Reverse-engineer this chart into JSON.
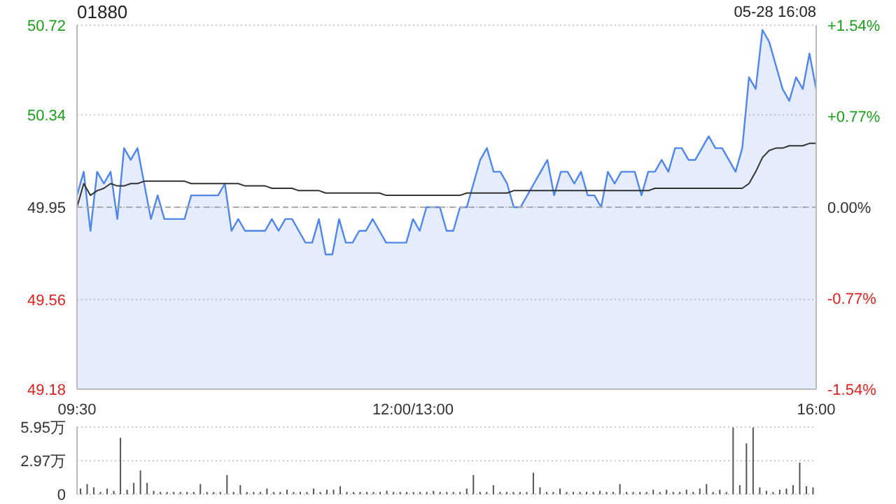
{
  "chart_data": [
    {
      "type": "area",
      "title": "01880",
      "annotations": [
        "05-28 16:08"
      ],
      "categories": [
        "09:30",
        null,
        null,
        null,
        null,
        null,
        null,
        null,
        null,
        null,
        null,
        null,
        null,
        null,
        null,
        null,
        null,
        null,
        null,
        null,
        null,
        null,
        null,
        null,
        null,
        null,
        null,
        null,
        null,
        null,
        null,
        null,
        null,
        null,
        null,
        null,
        null,
        null,
        null,
        null,
        null,
        null,
        null,
        null,
        null,
        null,
        null,
        null,
        null,
        null,
        "12:00/13:00",
        null,
        null,
        null,
        null,
        null,
        null,
        null,
        null,
        null,
        null,
        null,
        null,
        null,
        null,
        null,
        null,
        null,
        null,
        null,
        null,
        null,
        null,
        null,
        null,
        null,
        null,
        null,
        null,
        null,
        null,
        null,
        null,
        null,
        null,
        null,
        null,
        null,
        null,
        null,
        null,
        null,
        null,
        null,
        null,
        null,
        null,
        null,
        null,
        null,
        null,
        null,
        null,
        null,
        null,
        null,
        null,
        null,
        null,
        null,
        "16:00"
      ],
      "ylim": [
        49.18,
        50.72
      ],
      "yticks": [
        49.18,
        49.56,
        49.95,
        50.34,
        50.72
      ],
      "y2lim": [
        -1.54,
        1.54
      ],
      "y2ticks": [
        {
          "value": -1.54,
          "label": "-1.54%"
        },
        {
          "value": -0.77,
          "label": "-0.77%"
        },
        {
          "value": 0,
          "label": "0.00%"
        },
        {
          "value": 0.77,
          "label": "+0.77%"
        },
        {
          "value": 1.54,
          "label": "+1.54%"
        }
      ],
      "grid": "y",
      "ref_lines": [
        {
          "axis": "y",
          "value": 49.95,
          "color": "#aaaaaa",
          "line_style": "dashed"
        }
      ],
      "series": [
        {
          "color": "#4f86ec",
          "values": [
            50.0,
            50.1,
            49.85,
            50.1,
            50.05,
            50.1,
            49.9,
            50.2,
            50.15,
            50.2,
            50.05,
            49.9,
            50.0,
            49.9,
            49.9,
            49.9,
            49.9,
            50.0,
            50.0,
            50.0,
            50.0,
            50.0,
            50.05,
            49.85,
            49.9,
            49.85,
            49.85,
            49.85,
            49.85,
            49.9,
            49.85,
            49.9,
            49.9,
            49.85,
            49.8,
            49.8,
            49.9,
            49.75,
            49.75,
            49.9,
            49.8,
            49.8,
            49.85,
            49.85,
            49.9,
            49.85,
            49.8,
            49.8,
            49.8,
            49.8,
            49.9,
            49.85,
            49.95,
            49.95,
            49.95,
            49.85,
            49.85,
            49.95,
            49.95,
            50.05,
            50.15,
            50.2,
            50.1,
            50.1,
            50.05,
            49.95,
            49.95,
            50.0,
            50.05,
            50.1,
            50.15,
            50.0,
            50.1,
            50.1,
            50.05,
            50.1,
            50.0,
            50.0,
            49.95,
            50.1,
            50.05,
            50.1,
            50.1,
            50.1,
            50.0,
            50.1,
            50.1,
            50.15,
            50.1,
            50.2,
            50.2,
            50.15,
            50.15,
            50.2,
            50.25,
            50.2,
            50.2,
            50.15,
            50.1,
            50.2,
            50.5,
            50.45,
            50.7,
            50.65,
            50.55,
            50.45,
            50.4,
            50.5,
            50.45,
            50.6,
            50.45
          ]
        },
        {
          "type": "line",
          "color": "#333333",
          "values": [
            49.95,
            50.05,
            50.0,
            50.02,
            50.03,
            50.05,
            50.04,
            50.04,
            50.05,
            50.05,
            50.06,
            50.06,
            50.06,
            50.06,
            50.06,
            50.06,
            50.06,
            50.05,
            50.05,
            50.05,
            50.05,
            50.05,
            50.05,
            50.05,
            50.05,
            50.04,
            50.04,
            50.04,
            50.04,
            50.03,
            50.03,
            50.03,
            50.03,
            50.02,
            50.02,
            50.02,
            50.02,
            50.01,
            50.01,
            50.01,
            50.01,
            50.01,
            50.01,
            50.01,
            50.01,
            50.01,
            50.0,
            50.0,
            50.0,
            50.0,
            50.0,
            50.0,
            50.0,
            50.0,
            50.0,
            50.0,
            50.0,
            50.0,
            50.01,
            50.01,
            50.01,
            50.01,
            50.01,
            50.01,
            50.01,
            50.02,
            50.02,
            50.02,
            50.02,
            50.02,
            50.02,
            50.02,
            50.02,
            50.02,
            50.02,
            50.02,
            50.02,
            50.02,
            50.02,
            50.02,
            50.02,
            50.02,
            50.02,
            50.02,
            50.02,
            50.02,
            50.03,
            50.03,
            50.03,
            50.03,
            50.03,
            50.03,
            50.03,
            50.03,
            50.03,
            50.03,
            50.03,
            50.03,
            50.03,
            50.03,
            50.05,
            50.1,
            50.16,
            50.19,
            50.2,
            50.2,
            50.21,
            50.21,
            50.21,
            50.22,
            50.22
          ]
        }
      ]
    },
    {
      "type": "bar",
      "categories": [
        null,
        null,
        null,
        null,
        null,
        null,
        null,
        null,
        null,
        null,
        null,
        null,
        null,
        null,
        null,
        null,
        null,
        null,
        null,
        null,
        null,
        null,
        null,
        null,
        null,
        null,
        null,
        null,
        null,
        null,
        null,
        null,
        null,
        null,
        null,
        null,
        null,
        null,
        null,
        null,
        null,
        null,
        null,
        null,
        null,
        null,
        null,
        null,
        null,
        null,
        null,
        null,
        null,
        null,
        null,
        null,
        null,
        null,
        null,
        null,
        null,
        null,
        null,
        null,
        null,
        null,
        null,
        null,
        null,
        null,
        null,
        null,
        null,
        null,
        null,
        null,
        null,
        null,
        null,
        null,
        null,
        null,
        null,
        null,
        null,
        null,
        null,
        null,
        null,
        null,
        null,
        null,
        null,
        null,
        null,
        null,
        null,
        null,
        null,
        null,
        null,
        null,
        null,
        null,
        null,
        null,
        null,
        null,
        null,
        null,
        null
      ],
      "ylim": [
        0,
        5.95
      ],
      "yticks": [
        0,
        {
          "value": 2.97,
          "label": "2.97万"
        },
        {
          "value": 5.95,
          "label": "5.95万"
        }
      ],
      "grid": "y",
      "tick_labels": "y",
      "series": [
        {
          "color": "#555555",
          "values": [
            0.5,
            0.9,
            0.6,
            0.2,
            0.5,
            0.3,
            5.0,
            0.4,
            1.0,
            2.1,
            1.0,
            0.3,
            0.2,
            0.2,
            0.2,
            0.2,
            0.2,
            0.2,
            0.9,
            0.2,
            0.2,
            0.2,
            1.7,
            0.2,
            0.8,
            0.2,
            0.2,
            0.2,
            0.5,
            0.2,
            0.2,
            0.4,
            0.2,
            0.2,
            0.2,
            0.5,
            0.2,
            0.4,
            0.4,
            0.7,
            0.2,
            0.2,
            0.2,
            0.2,
            0.2,
            0.2,
            0.3,
            0.2,
            0.2,
            0.2,
            0.2,
            0.2,
            0.2,
            0.3,
            0.2,
            0.2,
            0.2,
            0.2,
            0.5,
            1.7,
            0.2,
            0.2,
            0.8,
            0.2,
            0.2,
            0.2,
            0.2,
            0.2,
            1.9,
            0.6,
            0.2,
            0.2,
            0.5,
            0.2,
            0.2,
            0.2,
            0.2,
            0.2,
            0.3,
            0.2,
            0.2,
            0.9,
            0.2,
            0.2,
            0.2,
            0.2,
            0.4,
            0.2,
            0.4,
            0.2,
            0.2,
            0.4,
            0.2,
            0.5,
            0.9,
            0.2,
            0.4,
            0.2,
            5.9,
            0.8,
            4.5,
            5.9,
            0.6,
            0.3,
            0.2,
            0.4,
            0.5,
            0.8,
            2.8,
            0.7,
            0.6
          ]
        }
      ]
    }
  ]
}
